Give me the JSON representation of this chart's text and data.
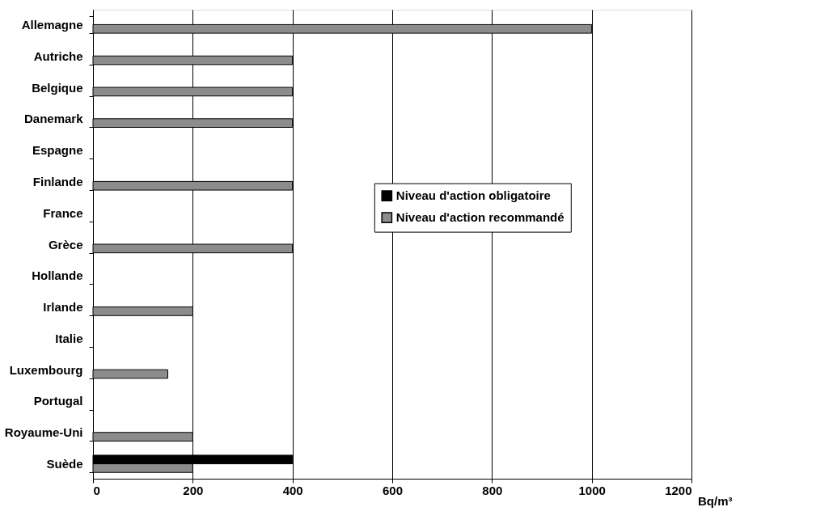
{
  "chart_data": {
    "type": "bar",
    "orientation": "horizontal",
    "xlabel": "Bq/m³",
    "categories": [
      "Allemagne",
      "Autriche",
      "Belgique",
      "Danemark",
      "Espagne",
      "Finlande",
      "France",
      "Grèce",
      "Hollande",
      "Irlande",
      "Italie",
      "Luxembourg",
      "Portugal",
      "Royaume-Uni",
      "Suède"
    ],
    "series": [
      {
        "name": "Niveau d'action obligatoire",
        "color": "#000000",
        "values": [
          null,
          null,
          null,
          null,
          null,
          null,
          null,
          null,
          null,
          null,
          null,
          null,
          null,
          null,
          400
        ]
      },
      {
        "name": "Niveau d'action recommandé",
        "color": "#8c8c8c",
        "values": [
          1000,
          400,
          400,
          400,
          null,
          400,
          null,
          400,
          null,
          200,
          null,
          150,
          null,
          200,
          200
        ]
      }
    ],
    "xlim": [
      0,
      1200
    ],
    "xticks": [
      0,
      200,
      400,
      600,
      800,
      1000,
      1200
    ],
    "grid": "x",
    "legend": "right"
  }
}
